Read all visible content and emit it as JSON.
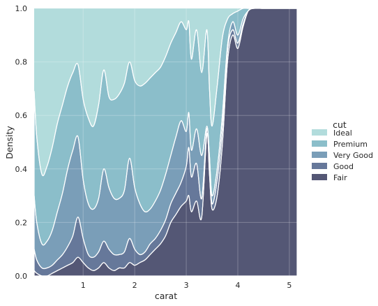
{
  "chart_data": {
    "type": "area",
    "stacked": "fill",
    "xlabel": "carat",
    "ylabel": "Density",
    "xlim": [
      0.05,
      5.15
    ],
    "ylim": [
      0,
      1
    ],
    "xticks": [
      1,
      2,
      3,
      4,
      5
    ],
    "yticks": [
      0.0,
      0.2,
      0.4,
      0.6,
      0.8,
      1.0
    ],
    "grid": true,
    "legend": {
      "title": "cut",
      "placement": "right",
      "entries": [
        "Ideal",
        "Premium",
        "Very Good",
        "Good",
        "Fair"
      ]
    },
    "colors": {
      "Ideal": "#b2dcdc",
      "Premium": "#8bbeca",
      "Very Good": "#7a9eb8",
      "Good": "#66789a",
      "Fair": "#545775",
      "background": "#eaeaf2"
    },
    "x": [
      0.05,
      0.1,
      0.2,
      0.3,
      0.4,
      0.5,
      0.6,
      0.7,
      0.8,
      0.9,
      1.0,
      1.1,
      1.2,
      1.3,
      1.4,
      1.5,
      1.6,
      1.7,
      1.8,
      1.9,
      2.0,
      2.1,
      2.2,
      2.3,
      2.4,
      2.5,
      2.6,
      2.7,
      2.8,
      2.9,
      3.0,
      3.05,
      3.1,
      3.2,
      3.3,
      3.4,
      3.45,
      3.5,
      3.6,
      3.7,
      3.8,
      3.9,
      4.0,
      4.1,
      4.2,
      4.3,
      4.5,
      4.7,
      5.0,
      5.15
    ],
    "boundaries": [
      {
        "name": "Fair|Good",
        "values": [
          0.02,
          0.01,
          0.0,
          0.0,
          0.01,
          0.02,
          0.03,
          0.04,
          0.05,
          0.07,
          0.05,
          0.03,
          0.02,
          0.03,
          0.05,
          0.03,
          0.02,
          0.03,
          0.03,
          0.05,
          0.04,
          0.05,
          0.06,
          0.08,
          0.1,
          0.12,
          0.15,
          0.2,
          0.23,
          0.26,
          0.28,
          0.3,
          0.24,
          0.28,
          0.22,
          0.53,
          0.38,
          0.25,
          0.3,
          0.49,
          0.8,
          0.9,
          0.85,
          0.93,
          0.99,
          1.0,
          1.0,
          1.0,
          1.0,
          1.0
        ]
      },
      {
        "name": "Good|Very Good",
        "values": [
          0.1,
          0.06,
          0.03,
          0.03,
          0.04,
          0.06,
          0.08,
          0.11,
          0.15,
          0.22,
          0.14,
          0.08,
          0.07,
          0.09,
          0.13,
          0.1,
          0.08,
          0.08,
          0.09,
          0.14,
          0.1,
          0.08,
          0.09,
          0.12,
          0.14,
          0.17,
          0.21,
          0.27,
          0.31,
          0.35,
          0.41,
          0.48,
          0.37,
          0.42,
          0.29,
          0.55,
          0.42,
          0.27,
          0.36,
          0.55,
          0.84,
          0.92,
          0.87,
          0.94,
          0.99,
          1.0,
          1.0,
          1.0,
          1.0,
          1.0
        ]
      },
      {
        "name": "Very Good|Premium",
        "values": [
          0.3,
          0.2,
          0.12,
          0.13,
          0.17,
          0.24,
          0.31,
          0.4,
          0.47,
          0.52,
          0.36,
          0.27,
          0.25,
          0.29,
          0.4,
          0.33,
          0.29,
          0.29,
          0.32,
          0.44,
          0.33,
          0.27,
          0.24,
          0.25,
          0.28,
          0.32,
          0.38,
          0.45,
          0.52,
          0.58,
          0.54,
          0.61,
          0.47,
          0.55,
          0.45,
          0.56,
          0.45,
          0.3,
          0.4,
          0.6,
          0.86,
          0.95,
          0.9,
          0.96,
          0.99,
          1.0,
          1.0,
          1.0,
          1.0,
          1.0
        ]
      },
      {
        "name": "Premium|Ideal",
        "values": [
          0.69,
          0.52,
          0.38,
          0.41,
          0.48,
          0.57,
          0.64,
          0.71,
          0.76,
          0.79,
          0.66,
          0.59,
          0.56,
          0.64,
          0.77,
          0.67,
          0.66,
          0.68,
          0.72,
          0.8,
          0.73,
          0.71,
          0.72,
          0.74,
          0.76,
          0.78,
          0.82,
          0.87,
          0.91,
          0.95,
          0.92,
          0.95,
          0.81,
          0.92,
          0.76,
          0.92,
          0.7,
          0.56,
          0.71,
          0.89,
          0.96,
          0.98,
          0.99,
          1.0,
          1.0,
          1.0,
          1.0,
          1.0,
          1.0,
          1.0
        ]
      }
    ]
  }
}
